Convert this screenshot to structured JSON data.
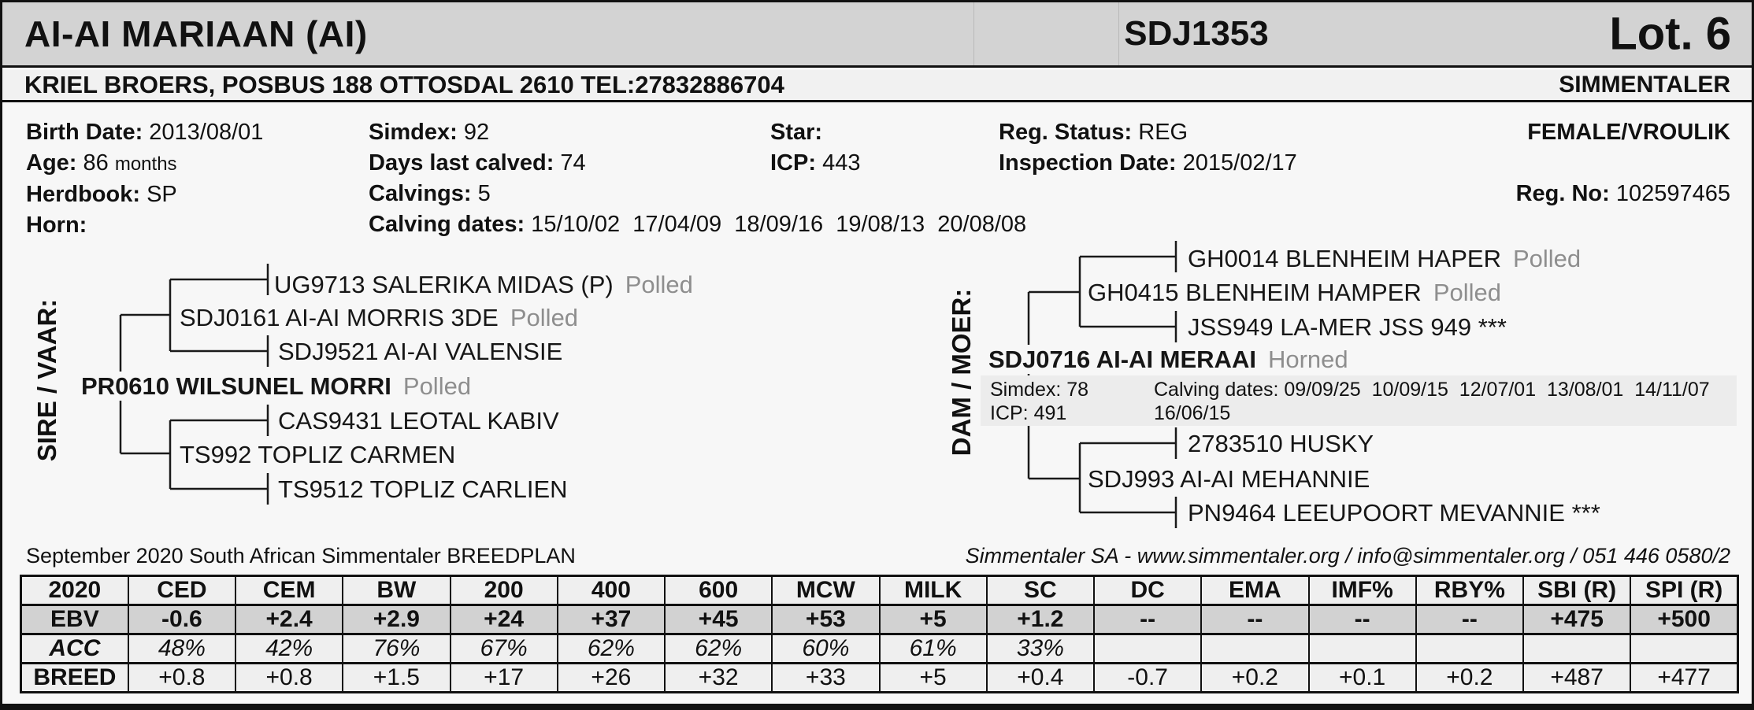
{
  "header": {
    "animal_name": "AI-AI MARIAAN (AI)",
    "animal_id": "SDJ1353",
    "lot": "Lot. 6"
  },
  "subheader": {
    "breeder": "KRIEL BROERS, POSBUS 188 OTTOSDAL 2610 TEL:27832886704",
    "breed": "SIMMENTALER"
  },
  "info": {
    "birth_date_label": "Birth Date:",
    "birth_date": "2013/08/01",
    "age_label": "Age:",
    "age": "86",
    "age_unit": "months",
    "herdbook_label": "Herdbook:",
    "herdbook": "SP",
    "horn_label": "Horn:",
    "horn": "",
    "simdex_label": "Simdex:",
    "simdex": "92",
    "days_last_calved_label": "Days last calved:",
    "days_last_calved": "74",
    "calvings_label": "Calvings:",
    "calvings": "5",
    "calving_dates_label": "Calving dates:",
    "calving_dates": "15/10/02  17/04/09  18/09/16  19/08/13  20/08/08",
    "star_label": "Star:",
    "star": "",
    "icp_label": "ICP:",
    "icp": "443",
    "reg_status_label": "Reg. Status:",
    "reg_status": "REG",
    "inspection_date_label": "Inspection Date:",
    "inspection_date": "2015/02/17",
    "sex": "FEMALE/VROULIK",
    "reg_no_label": "Reg. No:",
    "reg_no": "102597465"
  },
  "pedigree": {
    "sire_label": "SIRE / VAAR:",
    "dam_label": "DAM / MOER:",
    "sire": {
      "nodes": [
        {
          "name": "UG9713 SALERIKA MIDAS (P)",
          "horn": "Polled"
        },
        {
          "name": "SDJ0161 AI-AI MORRIS 3DE",
          "horn": "Polled"
        },
        {
          "name": "SDJ9521 AI-AI VALENSIE",
          "horn": ""
        },
        {
          "name": "PR0610 WILSUNEL MORRI",
          "horn": "Polled"
        },
        {
          "name": "CAS9431 LEOTAL KABIV",
          "horn": ""
        },
        {
          "name": "TS992 TOPLIZ CARMEN",
          "horn": ""
        },
        {
          "name": "TS9512 TOPLIZ CARLIEN",
          "horn": ""
        }
      ]
    },
    "dam": {
      "nodes": [
        {
          "name": "GH0014 BLENHEIM HAPER",
          "horn": "Polled"
        },
        {
          "name": "GH0415 BLENHEIM HAMPER",
          "horn": "Polled"
        },
        {
          "name": "JSS949 LA-MER JSS 949 ***",
          "horn": ""
        },
        {
          "name": "SDJ0716 AI-AI MERAAI",
          "horn": "Horned"
        },
        {
          "name": "2783510 HUSKY",
          "horn": ""
        },
        {
          "name": "SDJ993 AI-AI MEHANNIE",
          "horn": ""
        },
        {
          "name": "PN9464 LEEUPOORT MEVANNIE ***",
          "horn": ""
        }
      ],
      "info": {
        "simdex_label": "Simdex:",
        "simdex": "78",
        "icp_label": "ICP:",
        "icp": "491",
        "calving_dates_label": "Calving dates:",
        "calving_dates_line1": "09/09/25  10/09/15  12/07/01  13/08/01  14/11/07",
        "calving_dates_line2": "16/06/15"
      }
    }
  },
  "footer": {
    "breedplan": "September 2020 South African Simmentaler BREEDPLAN",
    "contact": "Simmentaler SA - www.simmentaler.org / info@simmentaler.org / 051 446 0580/2"
  },
  "table": {
    "columns": [
      "2020",
      "CED",
      "CEM",
      "BW",
      "200",
      "400",
      "600",
      "MCW",
      "MILK",
      "SC",
      "DC",
      "EMA",
      "IMF%",
      "RBY%",
      "SBI (R)",
      "SPI (R)"
    ],
    "rows": [
      {
        "label": "EBV",
        "style": "row-ebv",
        "values": [
          "-0.6",
          "+2.4",
          "+2.9",
          "+24",
          "+37",
          "+45",
          "+53",
          "+5",
          "+1.2",
          "--",
          "--",
          "--",
          "--",
          "+475",
          "+500"
        ]
      },
      {
        "label": "ACC",
        "style": "row-acc",
        "values": [
          "48%",
          "42%",
          "76%",
          "67%",
          "62%",
          "62%",
          "60%",
          "61%",
          "33%",
          "",
          "",
          "",
          "",
          "",
          ""
        ]
      },
      {
        "label": "BREED",
        "style": "row-breed",
        "values": [
          "+0.8",
          "+0.8",
          "+1.5",
          "+17",
          "+26",
          "+32",
          "+33",
          "+5",
          "+0.4",
          "-0.7",
          "+0.2",
          "+0.1",
          "+0.2",
          "+487",
          "+477"
        ]
      }
    ]
  }
}
